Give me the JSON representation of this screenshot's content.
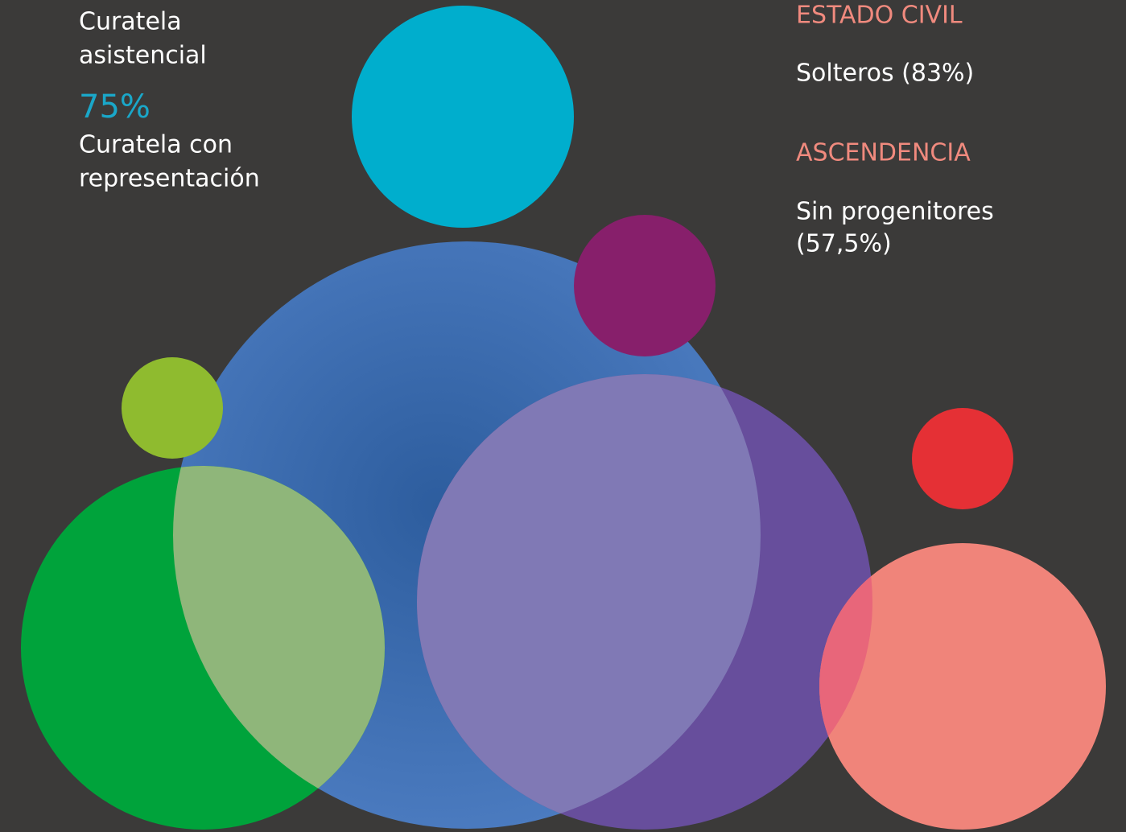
{
  "left": {
    "first": {
      "lines": [
        "Curatela",
        "asistencial"
      ]
    },
    "second": {
      "percent": "75%",
      "lines": [
        "Curatela con",
        "representación"
      ]
    }
  },
  "right": {
    "estado_civil": {
      "heading": "ESTADO CIVIL",
      "lines": [
        "Solteros (83%)"
      ]
    },
    "ascendencia": {
      "heading": "ASCENDENCIA",
      "lines": [
        "Sin progenitores",
        "(57,5%)"
      ]
    }
  }
}
